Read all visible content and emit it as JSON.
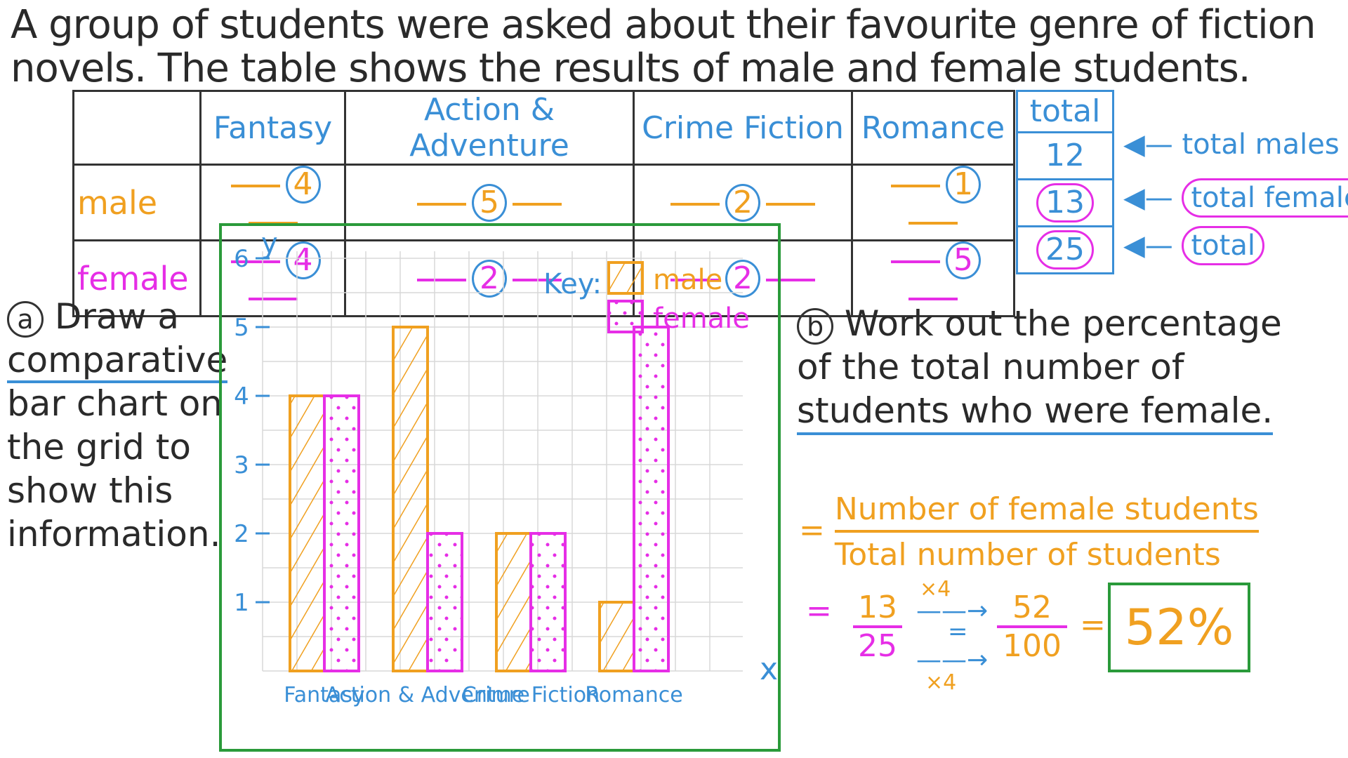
{
  "intro": {
    "line1": "A group of students were asked about their favourite genre of fiction",
    "line2": "novels. The table shows the results of male and female students."
  },
  "table": {
    "headers": [
      "Fantasy",
      "Action & Adventure",
      "Crime Fiction",
      "Romance"
    ],
    "rows": [
      {
        "label": "male",
        "values": [
          "4",
          "5",
          "2",
          "1"
        ]
      },
      {
        "label": "female",
        "values": [
          "4",
          "2",
          "2",
          "5"
        ]
      }
    ],
    "total_header": "total",
    "totals": [
      "12",
      "13",
      "25"
    ],
    "annotations": [
      "total males",
      "total females",
      "total"
    ]
  },
  "question_a": {
    "label": "a",
    "lines": [
      "Draw a",
      "comparative",
      "bar chart on",
      "the grid to",
      "show this",
      "information."
    ]
  },
  "chart_data": {
    "type": "bar",
    "categories": [
      "Fantasy",
      "Action & Adventure",
      "Crime Fiction",
      "Romance"
    ],
    "series": [
      {
        "name": "male",
        "values": [
          4,
          5,
          2,
          1
        ]
      },
      {
        "name": "female",
        "values": [
          4,
          2,
          2,
          5
        ]
      }
    ],
    "ylim": [
      0,
      6
    ],
    "yticks": [
      "1",
      "2",
      "3",
      "4",
      "5",
      "6"
    ],
    "xlabel": "x",
    "ylabel": "y",
    "key_title": "Key:",
    "grid": true,
    "colors": {
      "male": "#f0a020",
      "female": "#e62ee6",
      "axis": "#3a8fd6",
      "grid": "#d8d8d8"
    }
  },
  "question_b": {
    "label": "b",
    "lines": [
      "Work out the percentage",
      "of the total number of",
      "students who were female."
    ]
  },
  "working": {
    "eq": "=",
    "numerator_text": "Number of female students",
    "denominator_text": "Total number of students",
    "frac1_num": "13",
    "frac1_den": "25",
    "mult_top": "×4",
    "mult_bottom": "×4",
    "frac2_num": "52",
    "frac2_den": "100",
    "answer": "52%"
  }
}
